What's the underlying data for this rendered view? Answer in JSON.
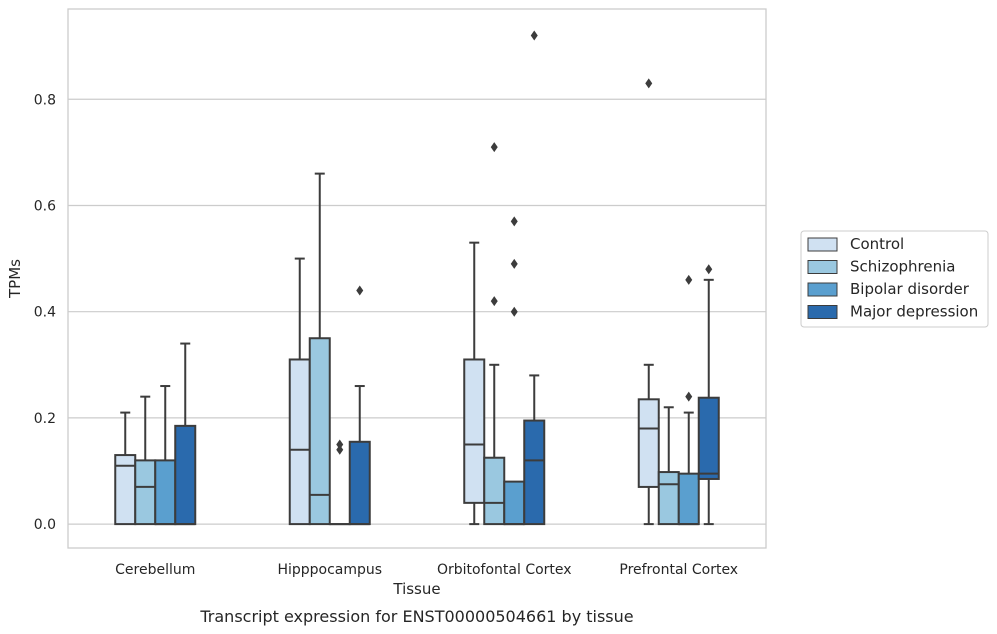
{
  "chart_data": {
    "type": "box",
    "caption": "Transcript expression for ENST00000504661 by tissue",
    "xlabel": "Tissue",
    "ylabel": "TPMs",
    "ylim": [
      -0.045,
      0.97
    ],
    "yticks": [
      0.0,
      0.2,
      0.4,
      0.6,
      0.8
    ],
    "ytick_labels": [
      "0.0",
      "0.2",
      "0.4",
      "0.6",
      "0.8"
    ],
    "grid": true,
    "legend_position": "right",
    "categories": [
      "Cerebellum",
      "Hipppocampus",
      "Orbitofontal Cortex",
      "Prefrontal Cortex"
    ],
    "series": [
      {
        "name": "Control",
        "color": "#d0e1f2",
        "boxes": [
          {
            "whislo": 0.0,
            "q1": 0.0,
            "med": 0.11,
            "q3": 0.13,
            "whishi": 0.21,
            "fliers": []
          },
          {
            "whislo": 0.0,
            "q1": 0.0,
            "med": 0.14,
            "q3": 0.31,
            "whishi": 0.5,
            "fliers": []
          },
          {
            "whislo": 0.0,
            "q1": 0.04,
            "med": 0.15,
            "q3": 0.31,
            "whishi": 0.53,
            "fliers": []
          },
          {
            "whislo": 0.0,
            "q1": 0.07,
            "med": 0.18,
            "q3": 0.235,
            "whishi": 0.3,
            "fliers": [
              0.83
            ]
          }
        ]
      },
      {
        "name": "Schizophrenia",
        "color": "#9ac8e0",
        "boxes": [
          {
            "whislo": 0.0,
            "q1": 0.0,
            "med": 0.07,
            "q3": 0.12,
            "whishi": 0.24,
            "fliers": []
          },
          {
            "whislo": 0.0,
            "q1": 0.0,
            "med": 0.055,
            "q3": 0.35,
            "whishi": 0.66,
            "fliers": []
          },
          {
            "whislo": 0.0,
            "q1": 0.0,
            "med": 0.04,
            "q3": 0.125,
            "whishi": 0.3,
            "fliers": [
              0.42,
              0.71
            ]
          },
          {
            "whislo": 0.0,
            "q1": 0.0,
            "med": 0.075,
            "q3": 0.098,
            "whishi": 0.22,
            "fliers": []
          }
        ]
      },
      {
        "name": "Bipolar disorder",
        "color": "#5a9fcf",
        "boxes": [
          {
            "whislo": 0.0,
            "q1": 0.0,
            "med": 0.0,
            "q3": 0.12,
            "whishi": 0.26,
            "fliers": []
          },
          {
            "whislo": 0.0,
            "q1": 0.0,
            "med": 0.0,
            "q3": 0.0,
            "whishi": 0.0,
            "fliers": [
              0.14,
              0.15
            ]
          },
          {
            "whislo": 0.0,
            "q1": 0.0,
            "med": 0.0,
            "q3": 0.08,
            "whishi": 0.08,
            "fliers": [
              0.4,
              0.49,
              0.57
            ]
          },
          {
            "whislo": 0.0,
            "q1": 0.0,
            "med": 0.0,
            "q3": 0.095,
            "whishi": 0.21,
            "fliers": [
              0.24,
              0.46
            ]
          }
        ]
      },
      {
        "name": "Major depression",
        "color": "#2a6aad",
        "boxes": [
          {
            "whislo": 0.0,
            "q1": 0.0,
            "med": 0.0,
            "q3": 0.185,
            "whishi": 0.34,
            "fliers": []
          },
          {
            "whislo": 0.0,
            "q1": 0.0,
            "med": 0.0,
            "q3": 0.155,
            "whishi": 0.26,
            "fliers": [
              0.44
            ]
          },
          {
            "whislo": 0.0,
            "q1": 0.0,
            "med": 0.12,
            "q3": 0.195,
            "whishi": 0.28,
            "fliers": [
              0.92
            ]
          },
          {
            "whislo": 0.0,
            "q1": 0.085,
            "med": 0.095,
            "q3": 0.238,
            "whishi": 0.46,
            "fliers": [
              0.48
            ]
          }
        ]
      }
    ]
  }
}
